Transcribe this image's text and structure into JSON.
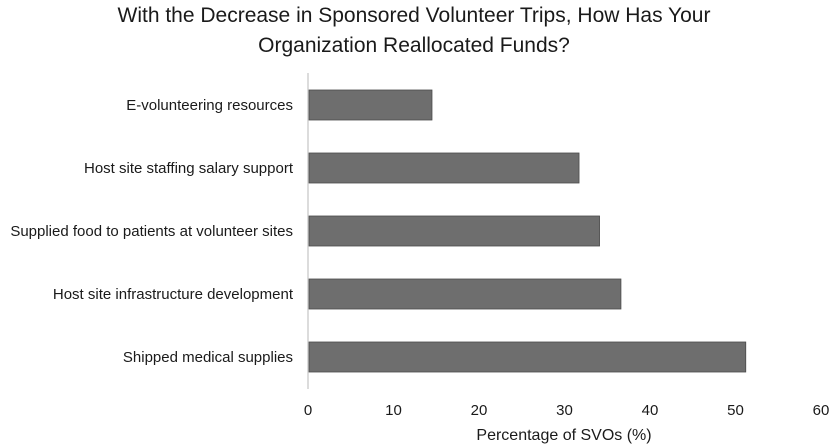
{
  "chart_data": {
    "type": "bar",
    "orientation": "horizontal",
    "title": "With the Decrease in Sponsored Volunteer Trips, How Has Your Organization Reallocated Funds?",
    "title_lines": [
      "With the Decrease in Sponsored Volunteer Trips, How Has Your",
      "Organization Reallocated Funds?"
    ],
    "xlabel": "Percentage of SVOs (%)",
    "ylabel": "",
    "xlim": [
      0,
      60
    ],
    "x_ticks": [
      0,
      10,
      20,
      30,
      40,
      50,
      60
    ],
    "categories": [
      "E-volunteering resources",
      "Host site staffing salary support",
      "Supplied food to patients at volunteer sites",
      "Host site infrastructure development",
      "Shipped medical supplies"
    ],
    "values": [
      14.5,
      31.7,
      34.1,
      36.6,
      51.2
    ],
    "bar_color": "#6e6e6e",
    "bar_edge_color": "#4a4a4a",
    "axis_color": "#d0d0d0",
    "grid": false,
    "legend": "none"
  }
}
